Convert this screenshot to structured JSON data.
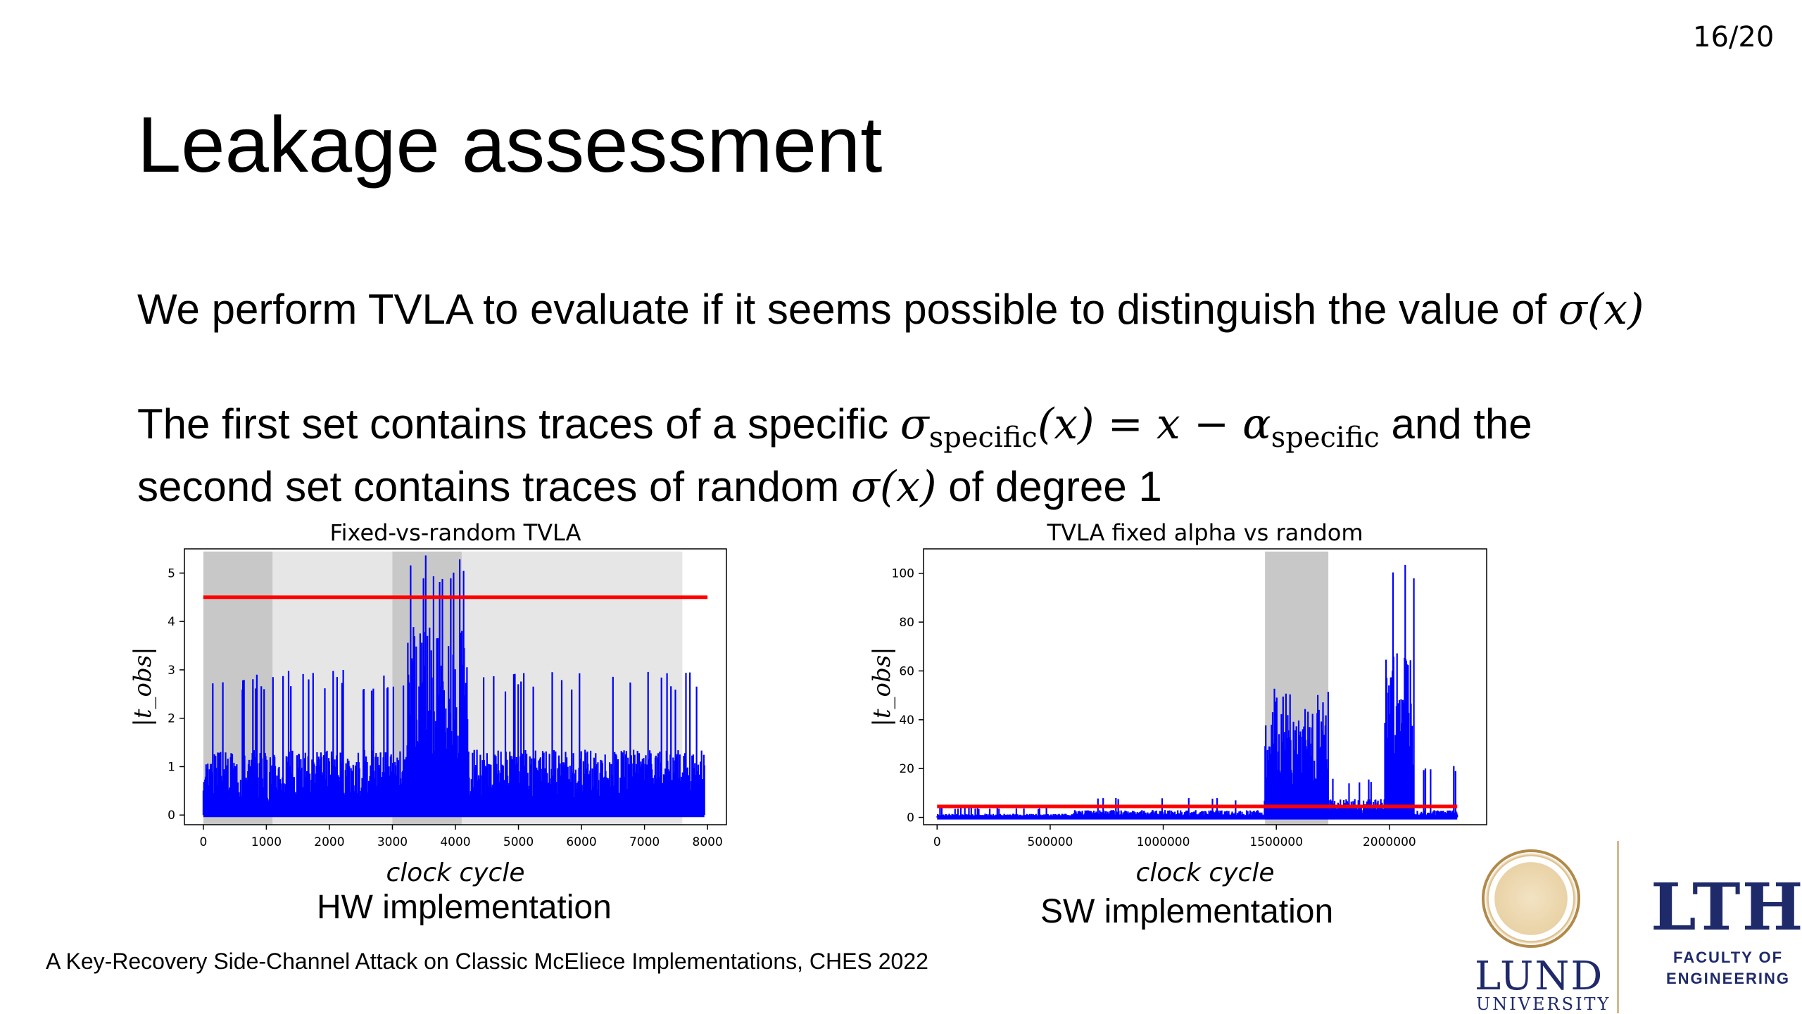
{
  "slide": {
    "page_number": "16/20",
    "title": "Leakage assessment",
    "para1_text": "We perform TVLA to evaluate if it seems possible to distinguish the value of",
    "para1_math": "σ(x)",
    "para2_a": "The first set contains traces of a specific",
    "para2_sigma": "σ",
    "para2_sub1": "specific",
    "para2_mid": "(x) = x − α",
    "para2_sub2": "specific",
    "para2_b": "and the second set contains traces of random",
    "para2_math2": "σ(x)",
    "para2_c": "of degree 1",
    "caption_left": "HW implementation",
    "caption_right": "SW implementation",
    "footer": "A Key-Recovery Side-Channel Attack on Classic McEliece Implementations, CHES 2022",
    "logo": {
      "lund": "LUND",
      "university": "UNIVERSITY",
      "lth": "LTH",
      "faculty_line1": "FACULTY OF",
      "faculty_line2": "ENGINEERING"
    }
  },
  "colors": {
    "trace": "#0000ff",
    "threshold": "#ff0000",
    "shade_dark": "#c8c8c8",
    "shade_light": "#e6e6e6"
  },
  "chart_data": [
    {
      "type": "line",
      "title": "Fixed-vs-random TVLA",
      "xlabel": "clock cycle",
      "ylabel": "|t_obs|",
      "xlim": [
        -300,
        8300
      ],
      "ylim": [
        -0.2,
        5.5
      ],
      "xticks": [
        0,
        1000,
        2000,
        3000,
        4000,
        5000,
        6000,
        7000,
        8000
      ],
      "yticks": [
        0,
        1,
        2,
        3,
        4,
        5
      ],
      "threshold": 4.5,
      "threshold_range": [
        0,
        8000
      ],
      "shaded": [
        {
          "from": 0,
          "to": 1100,
          "shade": "dark"
        },
        {
          "from": 1100,
          "to": 3000,
          "shade": "light"
        },
        {
          "from": 3000,
          "to": 4100,
          "shade": "dark"
        },
        {
          "from": 4100,
          "to": 7600,
          "shade": "light"
        }
      ],
      "series": [
        {
          "x_range": [
            0,
            7950
          ],
          "segments": [
            {
              "from": 0,
              "to": 3200,
              "base": 0.9,
              "peak": 3.0
            },
            {
              "from": 3200,
              "to": 4200,
              "base": 2.6,
              "peak": 5.4
            },
            {
              "from": 4200,
              "to": 7950,
              "base": 0.9,
              "peak": 3.0
            }
          ]
        }
      ]
    },
    {
      "type": "line",
      "title": "TVLA fixed alpha vs random",
      "xlabel": "clock cycle",
      "ylabel": "|t_obs|",
      "xlim": [
        -60000,
        2430000
      ],
      "ylim": [
        -3,
        110
      ],
      "xticks": [
        0,
        500000,
        1000000,
        1500000,
        2000000
      ],
      "yticks": [
        0,
        20,
        40,
        60,
        80,
        100
      ],
      "threshold": 4.5,
      "threshold_range": [
        0,
        2300000
      ],
      "shaded": [
        {
          "from": 1450000,
          "to": 1730000,
          "shade": "dark"
        }
      ],
      "series": [
        {
          "x_range": [
            0,
            2300000
          ],
          "segments": [
            {
              "from": 0,
              "to": 600000,
              "base": 1.0,
              "peak": 4.0
            },
            {
              "from": 600000,
              "to": 1450000,
              "base": 2.0,
              "peak": 8.0
            },
            {
              "from": 1450000,
              "to": 1730000,
              "base": 30.0,
              "peak": 53.0
            },
            {
              "from": 1730000,
              "to": 1980000,
              "base": 5.0,
              "peak": 16.0
            },
            {
              "from": 1980000,
              "to": 2110000,
              "base": 45.0,
              "peak": 108.0
            },
            {
              "from": 2110000,
              "to": 2300000,
              "base": 2.0,
              "peak": 22.0
            }
          ]
        }
      ]
    }
  ]
}
